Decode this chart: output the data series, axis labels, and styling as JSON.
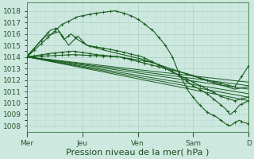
{
  "bg_color": "#cce8df",
  "plot_bg": "#cce8df",
  "grid_major_color": "#b0d4c8",
  "grid_minor_color": "#c0ddd5",
  "line_color": "#1a5c20",
  "marker_color": "#1a5c20",
  "xlabel": "Pression niveau de la mer( hPa )",
  "xlabels": [
    "Mer",
    "Jeu",
    "Ven",
    "Sam",
    "D"
  ],
  "xtick_positions": [
    0,
    24,
    48,
    72,
    96
  ],
  "ylim": [
    1007.5,
    1018.7
  ],
  "yticks": [
    1008,
    1009,
    1010,
    1011,
    1012,
    1013,
    1014,
    1015,
    1016,
    1017,
    1018
  ],
  "total_hours": 96,
  "xlabel_fontsize": 8,
  "tick_fontsize": 6.5
}
